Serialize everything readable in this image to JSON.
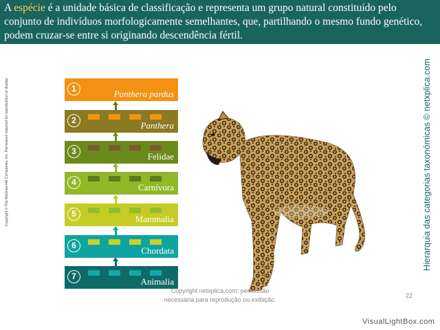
{
  "header": {
    "prefix": "A ",
    "highlight": "espécie",
    "suffix": " é a unidade básica de classificação e representa um grupo natural constituído pelo conjunto de indivíduos morfologicamente semelhantes, que, partilhando o mesmo fundo genético, podem cruzar-se entre si originando descendência fértil."
  },
  "side_copyright": "Copyright © The McGraw-Hill Companies, Inc. Permission required for reproduction or display.",
  "side_title": "Hierarquia das categorias taxonómicas © netxplica.com",
  "levels": [
    {
      "num": "1",
      "label": "Panthera pardus",
      "italic": true,
      "bg": "#f39212",
      "sq": "#f6b156"
    },
    {
      "num": "2",
      "label": "Panthera",
      "italic": true,
      "bg": "#8a7a23",
      "sq": "#f39212"
    },
    {
      "num": "3",
      "label": "Felidae",
      "italic": false,
      "bg": "#6a8a1c",
      "sq": "#7d5a2e"
    },
    {
      "num": "4",
      "label": "Carnívora",
      "italic": false,
      "bg": "#8fb928",
      "sq": "#5c7b1e"
    },
    {
      "num": "5",
      "label": "Mammalia",
      "italic": false,
      "bg": "#c6cc25",
      "sq": "#8fc02a"
    },
    {
      "num": "6",
      "label": "Chordata",
      "italic": false,
      "bg": "#10a4a0",
      "sq": "#c8d22a"
    },
    {
      "num": "7",
      "label": "Animalia",
      "italic": false,
      "bg": "#0e6a68",
      "sq": "#15a8a8"
    }
  ],
  "footer": {
    "line1": "Copyright netxplica.com: permissão",
    "line2": "necessária para reprodução ou exibição."
  },
  "page_number": "22",
  "watermark": "VisualLightBox.com",
  "image_subject": "leopard"
}
